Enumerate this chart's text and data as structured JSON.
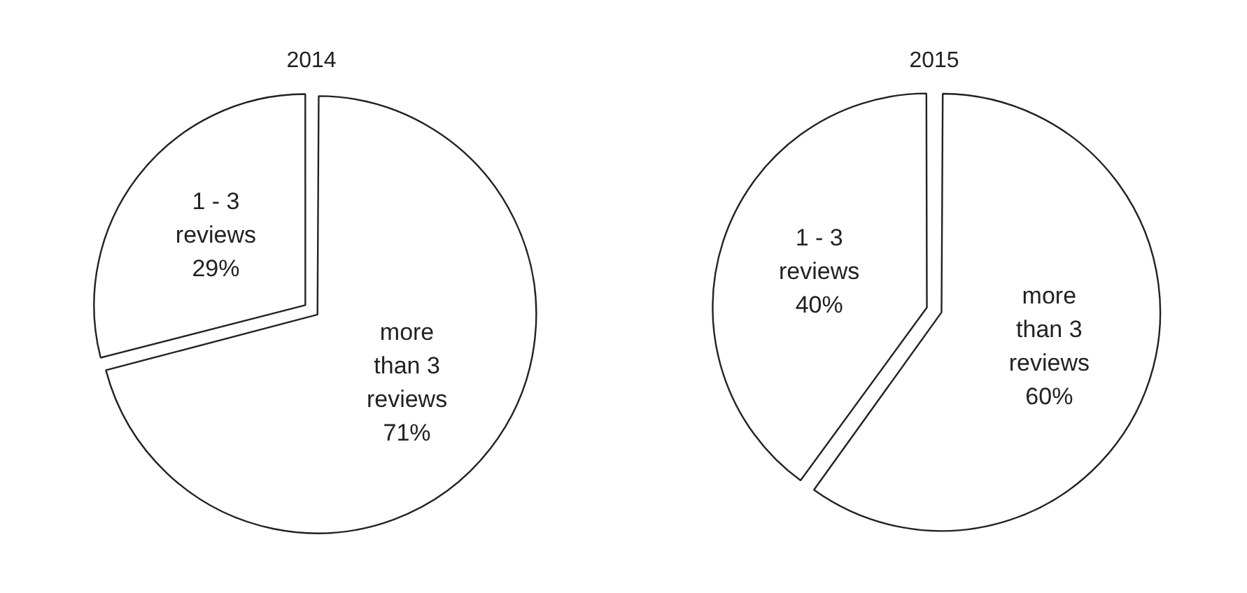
{
  "chart_data": [
    {
      "type": "pie",
      "title": "2014",
      "categories": [
        "1 - 3 reviews",
        "more than 3 reviews"
      ],
      "values": [
        29,
        71
      ],
      "colors": [
        "#ffffff",
        "#ffffff"
      ],
      "value_labels": [
        "29%",
        "71%"
      ]
    },
    {
      "type": "pie",
      "title": "2015",
      "categories": [
        "1 - 3 reviews",
        "more than 3 reviews"
      ],
      "values": [
        40,
        60
      ],
      "colors": [
        "#ffffff",
        "#ffffff"
      ],
      "value_labels": [
        "40%",
        "60%"
      ]
    }
  ]
}
